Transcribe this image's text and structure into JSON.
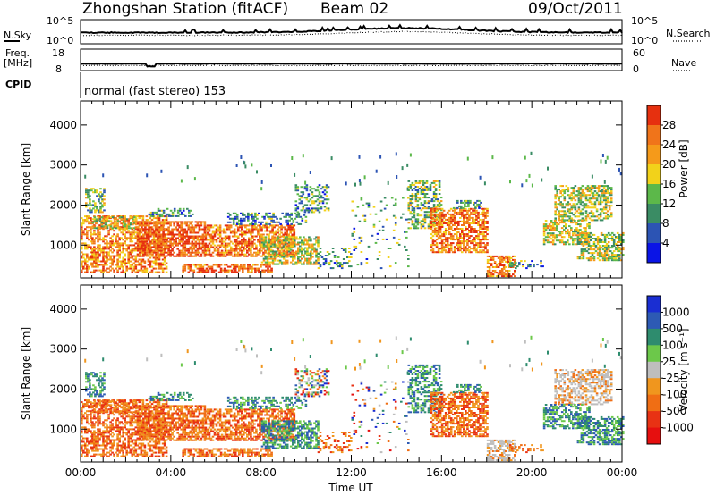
{
  "header": {
    "station": "Zhongshan Station (fitACF)",
    "beam": "Beam 02",
    "date": "09/Oct/2011"
  },
  "top_panels": {
    "nsky_label": "N.Sky",
    "nsky_ticks": [
      "10^5",
      "10^0"
    ],
    "nsearch_label": "N.Search",
    "nsearch_ticks": [
      "10^5",
      "10^0"
    ],
    "freq_label_1": "Freq.",
    "freq_label_2": "[MHz]",
    "freq_ticks": [
      "18",
      "8"
    ],
    "nave_label": "Nave",
    "nave_ticks": [
      "60",
      "0"
    ],
    "cpid_label": "CPID",
    "cpid_text": "normal (fast stereo) 153"
  },
  "chart_data": [
    {
      "type": "heatmap",
      "ylabel": "Slant Range [km]",
      "xlabel": "",
      "y_ticks": [
        "1000",
        "2000",
        "3000",
        "4000"
      ],
      "ylim": [
        180,
        4600
      ],
      "xlim": [
        0,
        24
      ],
      "colorbar_label": "Power [dB]",
      "colorbar_ticks": [
        "4",
        "8",
        "12",
        "16",
        "20",
        "24",
        "28"
      ],
      "colorbar_colors": [
        "#0a14e6",
        "#2c54b4",
        "#3a8c64",
        "#5cb84a",
        "#f2d21a",
        "#f59a1a",
        "#f0741a",
        "#e6300f"
      ]
    },
    {
      "type": "heatmap",
      "ylabel": "Slant Range [km]",
      "xlabel": "Time UT",
      "x_ticks": [
        "00:00",
        "04:00",
        "08:00",
        "12:00",
        "16:00",
        "20:00",
        "00:00"
      ],
      "y_ticks": [
        "1000",
        "2000",
        "3000",
        "4000"
      ],
      "ylim": [
        180,
        4600
      ],
      "xlim": [
        0,
        24
      ],
      "colorbar_label": "Velocity [m s⁻¹]",
      "colorbar_ticks": [
        "1000",
        "500",
        "100",
        "25",
        "-25",
        "-100",
        "-500",
        "-1000"
      ],
      "colorbar_colors": [
        "#1a2ed2",
        "#2d5ab4",
        "#2e8c6e",
        "#6cc84a",
        "#bebebe",
        "#f0961e",
        "#f06e14",
        "#e83214",
        "#e60f0f"
      ]
    }
  ]
}
